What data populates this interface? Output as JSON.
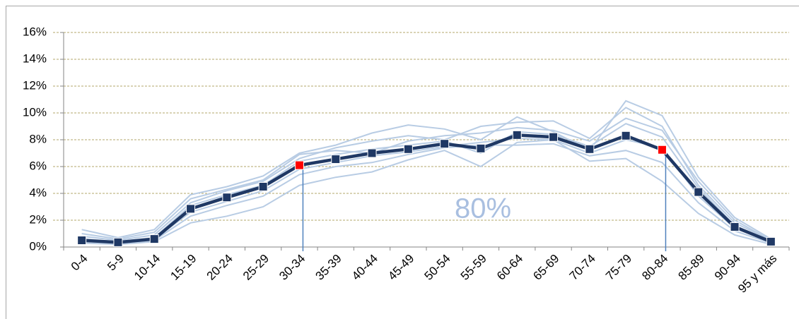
{
  "chart_data": {
    "type": "line",
    "annotation": "80%",
    "categories": [
      "0-4",
      "5-9",
      "10-14",
      "15-19",
      "20-24",
      "25-29",
      "30-34",
      "35-39",
      "40-44",
      "45-49",
      "50-54",
      "55-59",
      "60-64",
      "65-69",
      "70-74",
      "75-79",
      "80-84",
      "85-89",
      "90-94",
      "95 y más"
    ],
    "values": [
      0.5,
      0.35,
      0.6,
      2.85,
      3.7,
      4.5,
      6.1,
      6.55,
      7.0,
      7.3,
      7.7,
      7.35,
      8.35,
      8.2,
      7.3,
      8.3,
      7.25,
      4.1,
      1.5,
      0.4
    ],
    "color": "#1f3864",
    "highlight": [
      6,
      16
    ],
    "highlight_color": "#ff0000",
    "background_series": [
      {
        "color": "#b8cce4",
        "values": [
          1.3,
          0.7,
          1.3,
          3.9,
          4.5,
          5.3,
          7.0,
          7.6,
          8.5,
          9.1,
          8.8,
          8.0,
          9.7,
          8.6,
          7.2,
          10.9,
          9.8,
          5.2,
          2.2,
          0.6
        ]
      },
      {
        "color": "#b8cce4",
        "values": [
          0.3,
          0.2,
          0.4,
          1.8,
          2.3,
          3.0,
          4.6,
          5.2,
          5.6,
          6.5,
          7.2,
          6.0,
          7.8,
          8.0,
          6.4,
          6.6,
          4.9,
          2.5,
          0.9,
          0.2
        ]
      },
      {
        "color": "#b8cce4",
        "values": [
          0.8,
          0.5,
          0.9,
          3.3,
          4.2,
          4.9,
          6.6,
          7.4,
          7.9,
          8.3,
          8.0,
          9.0,
          9.3,
          9.4,
          8.1,
          10.4,
          9.0,
          4.6,
          1.8,
          0.5
        ]
      },
      {
        "color": "#b8cce4",
        "values": [
          0.4,
          0.3,
          0.5,
          2.3,
          3.1,
          3.8,
          5.4,
          6.0,
          6.3,
          6.9,
          7.4,
          7.6,
          7.6,
          7.7,
          6.8,
          7.2,
          6.3,
          3.3,
          1.2,
          0.3
        ]
      },
      {
        "color": "#b8cce4",
        "values": [
          0.6,
          0.4,
          0.7,
          3.1,
          3.9,
          4.6,
          6.4,
          6.9,
          7.3,
          7.6,
          7.9,
          7.0,
          8.6,
          8.4,
          7.5,
          9.2,
          8.2,
          4.4,
          1.6,
          0.4
        ]
      },
      {
        "color": "#b8cce4",
        "values": [
          1.0,
          0.6,
          1.1,
          3.6,
          4.3,
          5.0,
          6.9,
          7.2,
          7.0,
          7.9,
          8.3,
          8.5,
          8.9,
          8.7,
          7.9,
          9.6,
          8.7,
          4.9,
          2.0,
          0.5
        ]
      },
      {
        "color": "#b8cce4",
        "values": [
          0.5,
          0.3,
          0.6,
          2.6,
          3.4,
          4.2,
          5.8,
          6.3,
          6.8,
          7.1,
          7.5,
          7.8,
          8.1,
          8.0,
          7.0,
          8.0,
          7.4,
          3.8,
          1.4,
          0.4
        ]
      }
    ],
    "ylim": [
      0,
      16
    ],
    "yticks": [
      {
        "value": 0,
        "label": "0%"
      },
      {
        "value": 2,
        "label": "2%"
      },
      {
        "value": 4,
        "label": "4%"
      },
      {
        "value": 6,
        "label": "6%"
      },
      {
        "value": 8,
        "label": "8%"
      },
      {
        "value": 10,
        "label": "10%"
      },
      {
        "value": 12,
        "label": "12%"
      },
      {
        "value": 14,
        "label": "14%"
      },
      {
        "value": 16,
        "label": "16%"
      }
    ],
    "grid": true
  }
}
